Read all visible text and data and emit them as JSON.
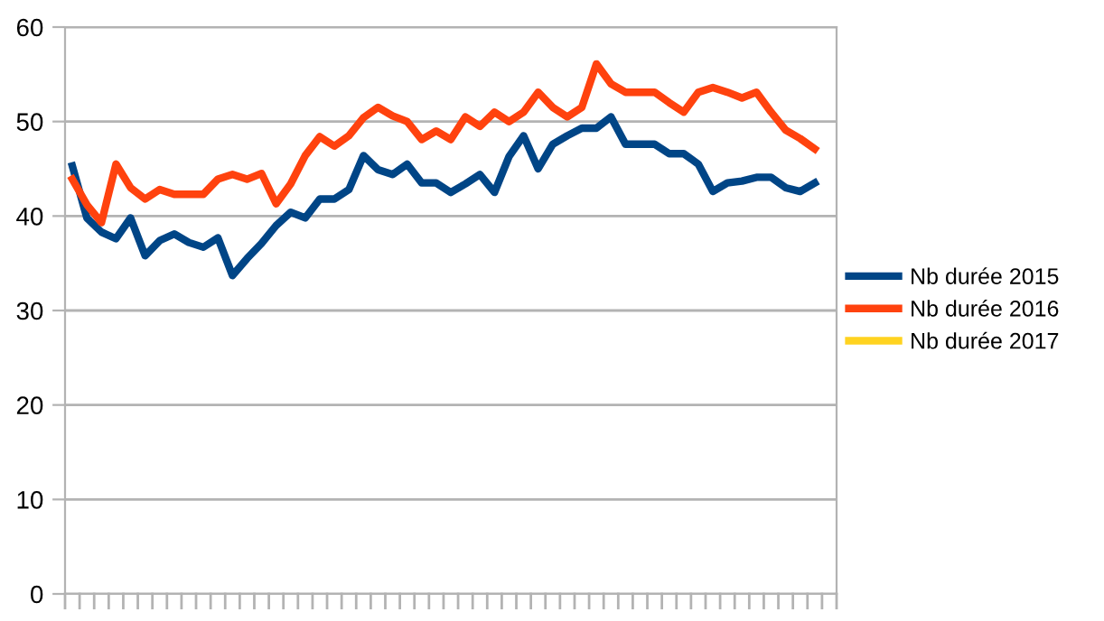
{
  "chart_data": {
    "type": "line",
    "categories": [
      null,
      null,
      null,
      null,
      null,
      null,
      null,
      null,
      null,
      null,
      null,
      null,
      null,
      null,
      null,
      null,
      null,
      null,
      null,
      null,
      null,
      null,
      null,
      null,
      null,
      null,
      null,
      null,
      null,
      null,
      null,
      null,
      null,
      null,
      null,
      null,
      null,
      null,
      null,
      null,
      null,
      null,
      null,
      null,
      null,
      null,
      null,
      null,
      null,
      null,
      null,
      null,
      null
    ],
    "series": [
      {
        "name": "Nb durée 2015",
        "color": "#004586",
        "values": [
          45.3,
          39.8,
          38.3,
          37.6,
          39.8,
          35.8,
          37.4,
          38.1,
          37.2,
          36.7,
          37.7,
          33.7,
          35.5,
          37.1,
          39.0,
          40.4,
          39.8,
          41.8,
          41.8,
          42.8,
          46.4,
          44.9,
          44.4,
          45.5,
          43.5,
          43.5,
          42.5,
          43.4,
          44.4,
          42.5,
          46.3,
          48.5,
          45.0,
          47.6,
          48.5,
          49.3,
          49.3,
          50.5,
          47.6,
          47.6,
          47.6,
          46.6,
          46.6,
          45.5,
          42.6,
          43.5,
          43.7,
          44.1,
          44.1,
          43.0,
          42.6,
          43.5,
          null
        ]
      },
      {
        "name": "Nb durée 2016",
        "color": "#ff420e",
        "values": [
          43.9,
          41.2,
          39.3,
          45.5,
          43.0,
          41.8,
          42.8,
          42.3,
          42.3,
          42.3,
          43.9,
          44.4,
          43.9,
          44.5,
          41.3,
          43.4,
          46.4,
          48.4,
          47.4,
          48.5,
          50.4,
          51.5,
          50.6,
          50.0,
          48.1,
          49.0,
          48.1,
          50.5,
          49.5,
          51.0,
          50.0,
          51.0,
          53.1,
          51.5,
          50.5,
          51.5,
          56.1,
          54.0,
          53.1,
          53.1,
          53.1,
          52.0,
          51.0,
          53.1,
          53.6,
          53.1,
          52.5,
          53.1,
          51.0,
          49.1,
          48.2,
          47.1,
          null
        ]
      },
      {
        "name": "Nb durée 2017",
        "color": "#ffd320",
        "values": [
          null,
          null,
          null,
          null,
          null,
          null,
          null,
          null,
          null,
          null,
          null,
          null,
          null,
          null,
          null,
          null,
          null,
          null,
          null,
          null,
          null,
          null,
          null,
          null,
          null,
          null,
          null,
          null,
          null,
          null,
          null,
          null,
          null,
          null,
          null,
          null,
          null,
          null,
          null,
          null,
          null,
          null,
          null,
          null,
          null,
          null,
          null,
          null,
          null,
          null,
          null,
          null,
          null
        ]
      }
    ],
    "ylim": [
      0,
      60
    ],
    "yticks": [
      0,
      10,
      20,
      30,
      40,
      50,
      60
    ],
    "grid": "y",
    "legend": "right",
    "marker": "none",
    "line_style": "solid"
  }
}
